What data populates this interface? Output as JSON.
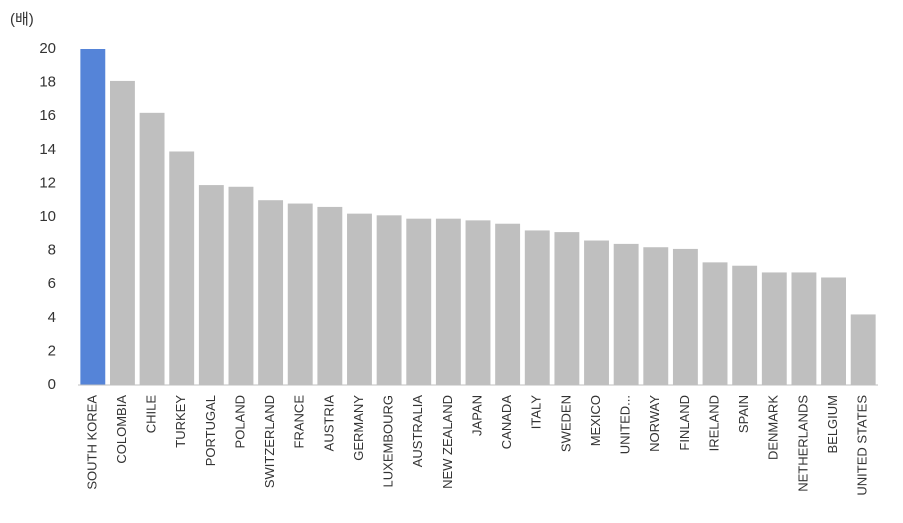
{
  "chart_data": {
    "type": "bar",
    "y_label": "(배)",
    "categories": [
      "SOUTH KOREA",
      "COLOMBIA",
      "CHILE",
      "TURKEY",
      "PORTUGAL",
      "POLAND",
      "SWITZERLAND",
      "FRANCE",
      "AUSTRIA",
      "GERMANY",
      "LUXEMBOURG",
      "AUSTRALIA",
      "NEW ZEALAND",
      "JAPAN",
      "CANADA",
      "ITALY",
      "SWEDEN",
      "MEXICO",
      "UNITED...",
      "NORWAY",
      "FINLAND",
      "IRELAND",
      "SPAIN",
      "DENMARK",
      "NETHERLANDS",
      "BELGIUM",
      "UNITED STATES"
    ],
    "values": [
      20.0,
      18.1,
      16.2,
      13.9,
      11.9,
      11.8,
      11.0,
      10.8,
      10.6,
      10.2,
      10.1,
      9.9,
      9.9,
      9.8,
      9.6,
      9.2,
      9.1,
      8.6,
      8.4,
      8.2,
      8.1,
      7.3,
      7.1,
      6.7,
      6.7,
      6.4,
      4.2
    ],
    "colors": [
      "#5584d8",
      "#bfbfbf",
      "#bfbfbf",
      "#bfbfbf",
      "#bfbfbf",
      "#bfbfbf",
      "#bfbfbf",
      "#bfbfbf",
      "#bfbfbf",
      "#bfbfbf",
      "#bfbfbf",
      "#bfbfbf",
      "#bfbfbf",
      "#bfbfbf",
      "#bfbfbf",
      "#bfbfbf",
      "#bfbfbf",
      "#bfbfbf",
      "#bfbfbf",
      "#bfbfbf",
      "#bfbfbf",
      "#bfbfbf",
      "#bfbfbf",
      "#bfbfbf",
      "#bfbfbf",
      "#bfbfbf",
      "#bfbfbf"
    ],
    "ylim": [
      0,
      20
    ],
    "yticks": [
      0,
      2,
      4,
      6,
      8,
      10,
      12,
      14,
      16,
      18,
      20
    ],
    "grid": false
  }
}
